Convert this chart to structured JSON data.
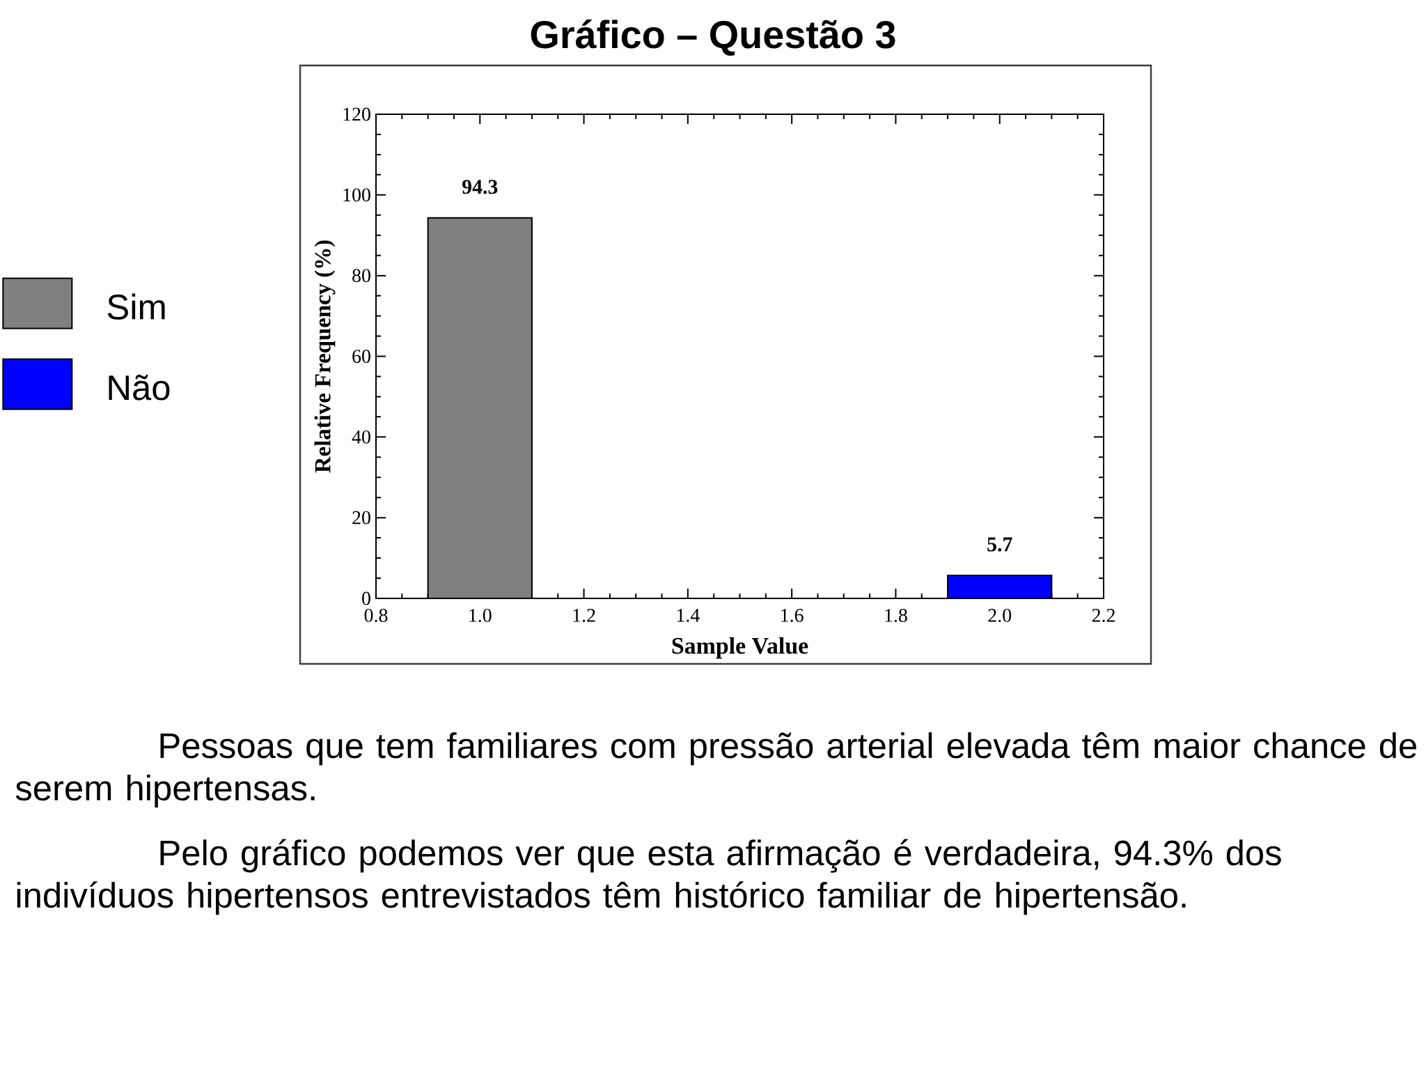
{
  "chart_data": {
    "type": "bar",
    "title": "Gráfico – Questão 3",
    "xlabel": "Sample Value",
    "ylabel": "Relative Frequency (%)",
    "series": [
      {
        "name": "Sim",
        "color": "#808080",
        "x": [
          1.0
        ],
        "values": [
          94.3
        ]
      },
      {
        "name": "Não",
        "color": "#0000ff",
        "x": [
          2.0
        ],
        "values": [
          5.7
        ]
      }
    ],
    "xlim": [
      0.8,
      2.2
    ],
    "xticks": [
      0.8,
      {
        "value": 1.0,
        "label": "1.0"
      },
      1.2,
      1.4,
      1.6,
      1.8,
      {
        "value": 2.0,
        "label": "2.0"
      },
      2.2
    ],
    "ylim": [
      0,
      120
    ],
    "yticks": [
      0,
      20,
      40,
      60,
      80,
      100,
      120
    ],
    "data_labels": true,
    "legend": "left",
    "annotations": [
      "Pessoas que tem familiares com pressão arterial elevada têm maior chance de serem hipertensas.",
      "Pelo gráfico podemos ver que esta afirmação é verdadeira, 94.3% dos indivíduos hipertensos entrevistados têm histórico familiar de hipertensão."
    ]
  }
}
